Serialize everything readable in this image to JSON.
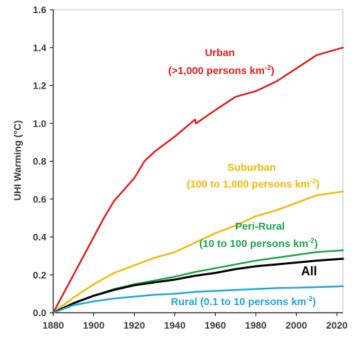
{
  "chart_data": {
    "type": "line",
    "title": "",
    "xlabel": "",
    "ylabel": "UHI Warming (°C)",
    "xlim": [
      1880,
      2023
    ],
    "ylim": [
      0,
      1.6
    ],
    "xticks": [
      1880,
      1900,
      1920,
      1940,
      1960,
      1980,
      2000,
      2020
    ],
    "yticks": [
      "0.0",
      "0.2",
      "0.4",
      "0.6",
      "0.8",
      "1.0",
      "1.2",
      "1.4",
      "1.6"
    ],
    "grid": false,
    "legend": "none",
    "series": [
      {
        "key": "urban",
        "color": "#e31a1c",
        "label_lines": [
          "Urban",
          "(>1,000 persons km",
          "-2",
          ")"
        ],
        "x": [
          1880,
          1890,
          1900,
          1905,
          1910,
          1920,
          1925,
          1930,
          1940,
          1950,
          1950.5,
          1960,
          1970,
          1980,
          1990,
          2000,
          2010,
          2023
        ],
        "y": [
          0,
          0.2,
          0.4,
          0.5,
          0.59,
          0.71,
          0.8,
          0.85,
          0.93,
          1.02,
          1.0,
          1.07,
          1.14,
          1.17,
          1.22,
          1.29,
          1.36,
          1.4
        ]
      },
      {
        "key": "suburban",
        "color": "#f5b800",
        "label_lines": [
          "Suburban",
          "(100 to 1,000 persons km",
          "-2",
          ")"
        ],
        "x": [
          1880,
          1890,
          1900,
          1910,
          1920,
          1930,
          1940,
          1950,
          1960,
          1970,
          1980,
          1990,
          2000,
          2010,
          2023
        ],
        "y": [
          0,
          0.08,
          0.15,
          0.21,
          0.25,
          0.29,
          0.32,
          0.37,
          0.42,
          0.46,
          0.51,
          0.54,
          0.58,
          0.62,
          0.64
        ]
      },
      {
        "key": "peri_rural",
        "color": "#1aa34a",
        "label_lines": [
          "Peri-Rural",
          "(10 to 100 persons km",
          "-2",
          ")"
        ],
        "x": [
          1880,
          1890,
          1900,
          1910,
          1920,
          1930,
          1940,
          1950,
          1960,
          1970,
          1980,
          1990,
          2000,
          2010,
          2023
        ],
        "y": [
          0,
          0.05,
          0.09,
          0.125,
          0.15,
          0.17,
          0.19,
          0.215,
          0.235,
          0.255,
          0.275,
          0.29,
          0.305,
          0.32,
          0.33
        ]
      },
      {
        "key": "all",
        "color": "#000000",
        "label_lines": [
          "All"
        ],
        "x": [
          1880,
          1890,
          1900,
          1910,
          1920,
          1930,
          1940,
          1950,
          1960,
          1970,
          1980,
          1990,
          2000,
          2010,
          2023
        ],
        "y": [
          0,
          0.05,
          0.09,
          0.12,
          0.145,
          0.16,
          0.175,
          0.195,
          0.21,
          0.23,
          0.245,
          0.255,
          0.265,
          0.275,
          0.285
        ]
      },
      {
        "key": "rural",
        "color": "#1fa4e0",
        "label_lines": [
          "Rural (0.1 to 10 persons km",
          "-2",
          ")"
        ],
        "x": [
          1880,
          1890,
          1900,
          1910,
          1920,
          1930,
          1940,
          1950,
          1960,
          1970,
          1980,
          1990,
          2000,
          2010,
          2023
        ],
        "y": [
          0,
          0.04,
          0.06,
          0.075,
          0.085,
          0.095,
          0.1,
          0.11,
          0.115,
          0.12,
          0.125,
          0.13,
          0.132,
          0.135,
          0.14
        ]
      }
    ]
  }
}
